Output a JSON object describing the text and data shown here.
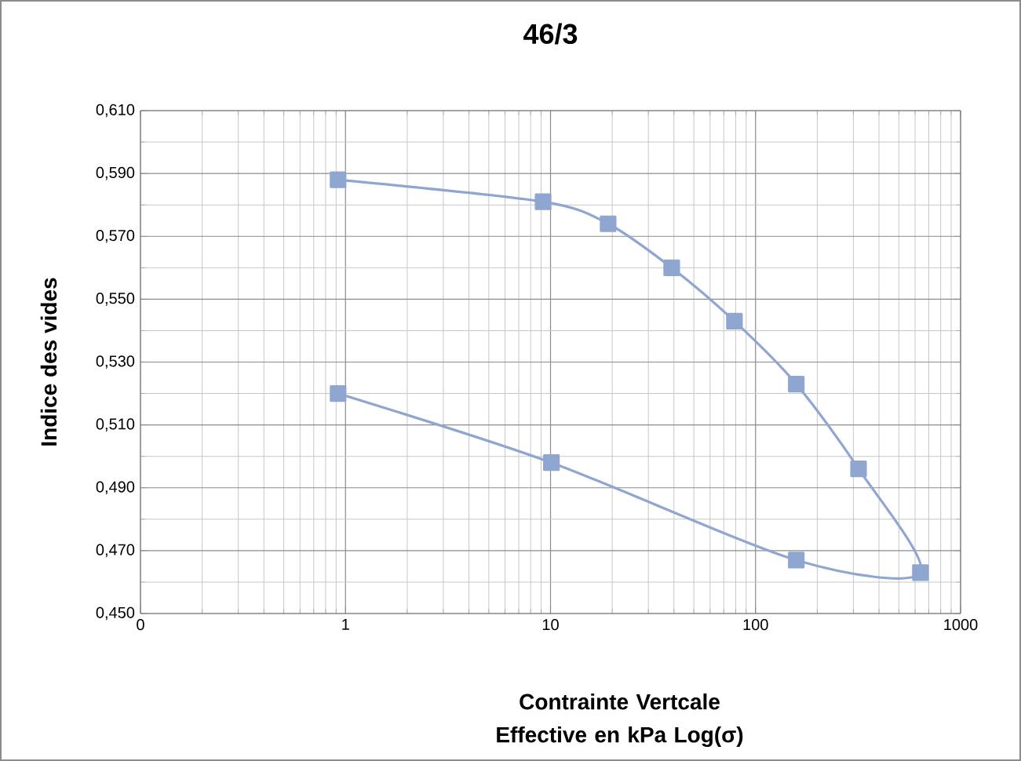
{
  "chart_data": {
    "type": "line",
    "title": "46/3",
    "xlabel": "Contrainte Vertcale Effective en kPa Log(σ)",
    "ylabel": "Indice des vides",
    "x": [
      0.92,
      9.2,
      19.1,
      39,
      78.9,
      158,
      318,
      637,
      158,
      10.1,
      0.92
    ],
    "values": [
      0.588,
      0.581,
      0.574,
      0.56,
      0.543,
      0.523,
      0.496,
      0.463,
      0.467,
      0.498,
      0.52
    ],
    "color": "#8fa6d1",
    "marker": "square",
    "line_style": "solid",
    "log": "x",
    "grid": true,
    "xlim": [
      0.1,
      1000
    ],
    "xticks": [
      {
        "value": 0.1,
        "label": "0"
      },
      1,
      10,
      100,
      1000
    ],
    "ylim": [
      0.45,
      0.61
    ],
    "yticks": [
      {
        "value": 0.45,
        "label": "0,450"
      },
      {
        "value": 0.47,
        "label": "0,470"
      },
      {
        "value": 0.49,
        "label": "0,490"
      },
      {
        "value": 0.51,
        "label": "0,510"
      },
      {
        "value": 0.53,
        "label": "0,530"
      },
      {
        "value": 0.55,
        "label": "0,550"
      },
      {
        "value": 0.57,
        "label": "0,570"
      },
      {
        "value": 0.59,
        "label": "0,590"
      },
      {
        "value": 0.61,
        "label": "0,610"
      }
    ]
  }
}
